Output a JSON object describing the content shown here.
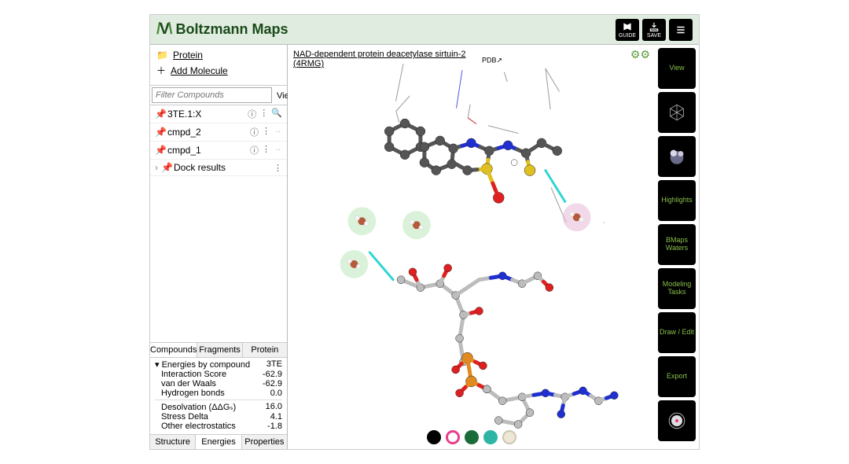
{
  "header": {
    "title": "Boltzmann Maps",
    "buttons": {
      "guide": "GUIDE",
      "save": "SAVE"
    }
  },
  "links": {
    "protein": "Protein",
    "add_molecule": "Add Molecule",
    "protein_name": "NAD-dependent protein deacetylase sirtuin-2 (4RMG)",
    "pdb_tag": "PDB"
  },
  "filter": {
    "placeholder": "Filter Compounds",
    "view_sort": "View / Sort ⋮"
  },
  "compounds": [
    {
      "pinned": true,
      "name": "3TE.1:X",
      "zoom": true
    },
    {
      "pinned": false,
      "name": "cmpd_2",
      "zoom": false
    },
    {
      "pinned": false,
      "name": "cmpd_1",
      "zoom": false
    }
  ],
  "dock_results": "Dock results",
  "top_tabs": [
    "Compounds",
    "Fragments",
    "Protein"
  ],
  "energies": {
    "header_left": "Energies by compound",
    "header_right": "3TE",
    "rows1": [
      {
        "label": "Interaction Score",
        "value": "-62.9"
      },
      {
        "label": "van der Waals",
        "value": "-62.9"
      },
      {
        "label": "Hydrogen bonds",
        "value": "0.0"
      }
    ],
    "rows2": [
      {
        "label": "Desolvation (ΔΔGₛ)",
        "value": "16.0"
      },
      {
        "label": "Stress Delta",
        "value": "4.1"
      },
      {
        "label": "Other electrostatics",
        "value": "-1.8"
      }
    ]
  },
  "bottom_tabs": [
    "Structure",
    "Energies",
    "Properties"
  ],
  "swatches": [
    {
      "fill": "#000000",
      "border": "#000000"
    },
    {
      "fill": "#ffffff",
      "border": "#e83e8c"
    },
    {
      "fill": "#1a6b3a",
      "border": "#1a6b3a"
    },
    {
      "fill": "#2fb5a5",
      "border": "#2fb5a5"
    },
    {
      "fill": "#eee7d5",
      "border": "#ccc5b3"
    }
  ],
  "rail": {
    "view": "View",
    "highlights": "Highlights",
    "bmaps_waters": "BMaps Waters",
    "modeling_tasks": "Modeling Tasks",
    "draw_edit": "Draw / Edit",
    "export": "Export"
  },
  "viz": {
    "wire_color": "#9a9a9a",
    "wire_n": "#4a5ae0",
    "wire_o": "#d02020",
    "bond_c": "#555555",
    "bond_n": "#2030d0",
    "bond_o": "#e02020",
    "bond_s": "#e0c020",
    "bond_p": "#e08a20",
    "bond_grey": "#bcbcbc",
    "cyan": "#2fd5d5",
    "halo_green": "#b9e8b9",
    "halo_pink": "#e8b9d9",
    "water_c": "#b55a3a",
    "water_h": "#f5f5f5"
  }
}
